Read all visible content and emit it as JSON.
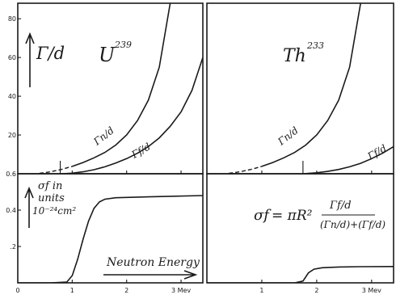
{
  "chart_data": [
    {
      "type": "line",
      "panel": "top-left",
      "xlim": [
        0,
        3.4
      ],
      "ylim": [
        0,
        88
      ],
      "x_ticks": [
        1,
        2,
        3
      ],
      "y_ticks": [
        20,
        40,
        60,
        80
      ],
      "y_tick_labels": [
        "20",
        "40",
        "60",
        "80"
      ],
      "title": "U",
      "title_sup": "239",
      "ylabel": "Γ/d",
      "threshold_marker_x": 0.78,
      "series": [
        {
          "name": "Γn/d",
          "dashed_until": 1.0,
          "x": [
            0.4,
            0.6,
            0.8,
            1.0,
            1.2,
            1.4,
            1.6,
            1.8,
            2.0,
            2.2,
            2.4,
            2.6,
            2.8
          ],
          "y": [
            0.2,
            1.0,
            2.2,
            3.8,
            5.8,
            8.2,
            11.0,
            14.8,
            20.0,
            27.5,
            38.0,
            55.0,
            88.0
          ]
        },
        {
          "name": "Γf/d",
          "x": [
            0.8,
            1.0,
            1.2,
            1.4,
            1.6,
            1.8,
            2.0,
            2.2,
            2.4,
            2.6,
            2.8,
            3.0,
            3.2,
            3.4
          ],
          "y": [
            0.0,
            0.3,
            1.0,
            2.1,
            3.6,
            5.5,
            7.8,
            10.6,
            14.0,
            18.5,
            24.5,
            32.0,
            43.0,
            60.0
          ]
        }
      ]
    },
    {
      "type": "line",
      "panel": "top-right",
      "xlim": [
        0,
        3.4
      ],
      "ylim": [
        0,
        88
      ],
      "x_ticks": [
        1,
        2,
        3
      ],
      "title": "Th",
      "title_sup": "233",
      "threshold_marker_x": 1.75,
      "series": [
        {
          "name": "Γn/d",
          "dashed_until": 1.0,
          "x": [
            0.4,
            0.6,
            0.8,
            1.0,
            1.2,
            1.4,
            1.6,
            1.8,
            2.0,
            2.2,
            2.4,
            2.6,
            2.8
          ],
          "y": [
            0.2,
            1.0,
            2.2,
            3.8,
            5.8,
            8.2,
            11.0,
            14.8,
            20.0,
            27.5,
            38.0,
            55.0,
            88.0
          ]
        },
        {
          "name": "Γf/d",
          "x": [
            1.75,
            2.0,
            2.2,
            2.4,
            2.6,
            2.8,
            3.0,
            3.2,
            3.4
          ],
          "y": [
            0.0,
            0.5,
            1.2,
            2.2,
            3.6,
            5.4,
            7.8,
            10.6,
            14.0
          ]
        }
      ]
    },
    {
      "type": "line",
      "panel": "bottom-left",
      "xlim": [
        0,
        3.4
      ],
      "ylim": [
        0,
        0.6
      ],
      "x_ticks": [
        0,
        1,
        2,
        3
      ],
      "x_tick_labels": [
        "0",
        "1",
        "2",
        "3 Mev"
      ],
      "y_ticks": [
        0.2,
        0.4,
        0.6
      ],
      "y_tick_labels": [
        ".2",
        "0.4",
        "0.6"
      ],
      "ylabel_lines": [
        "σf  in",
        "units",
        "10⁻²⁴cm²"
      ],
      "annotation": "Neutron Energy",
      "series": [
        {
          "name": "σf",
          "x": [
            0.0,
            0.6,
            0.9,
            1.0,
            1.1,
            1.2,
            1.3,
            1.4,
            1.5,
            1.6,
            1.8,
            2.0,
            2.4,
            2.8,
            3.4
          ],
          "y": [
            0.0,
            0.0,
            0.004,
            0.04,
            0.13,
            0.24,
            0.34,
            0.41,
            0.445,
            0.46,
            0.468,
            0.47,
            0.473,
            0.476,
            0.48
          ]
        }
      ]
    },
    {
      "type": "line",
      "panel": "bottom-right",
      "xlim": [
        0,
        3.4
      ],
      "ylim": [
        0,
        0.6
      ],
      "x_ticks": [
        1,
        2,
        3
      ],
      "x_tick_labels": [
        "1",
        "2",
        "3 Mev"
      ],
      "formula": {
        "lhs": "σf",
        "middle": "= πR²",
        "numerator": "Γf/d",
        "denominator": "(Γn/d)+(Γf/d)"
      },
      "series": [
        {
          "name": "σf",
          "x": [
            0.0,
            1.6,
            1.75,
            1.85,
            1.95,
            2.1,
            2.4,
            2.8,
            3.4
          ],
          "y": [
            0.0,
            0.0,
            0.01,
            0.055,
            0.075,
            0.083,
            0.087,
            0.089,
            0.09
          ]
        }
      ]
    }
  ]
}
